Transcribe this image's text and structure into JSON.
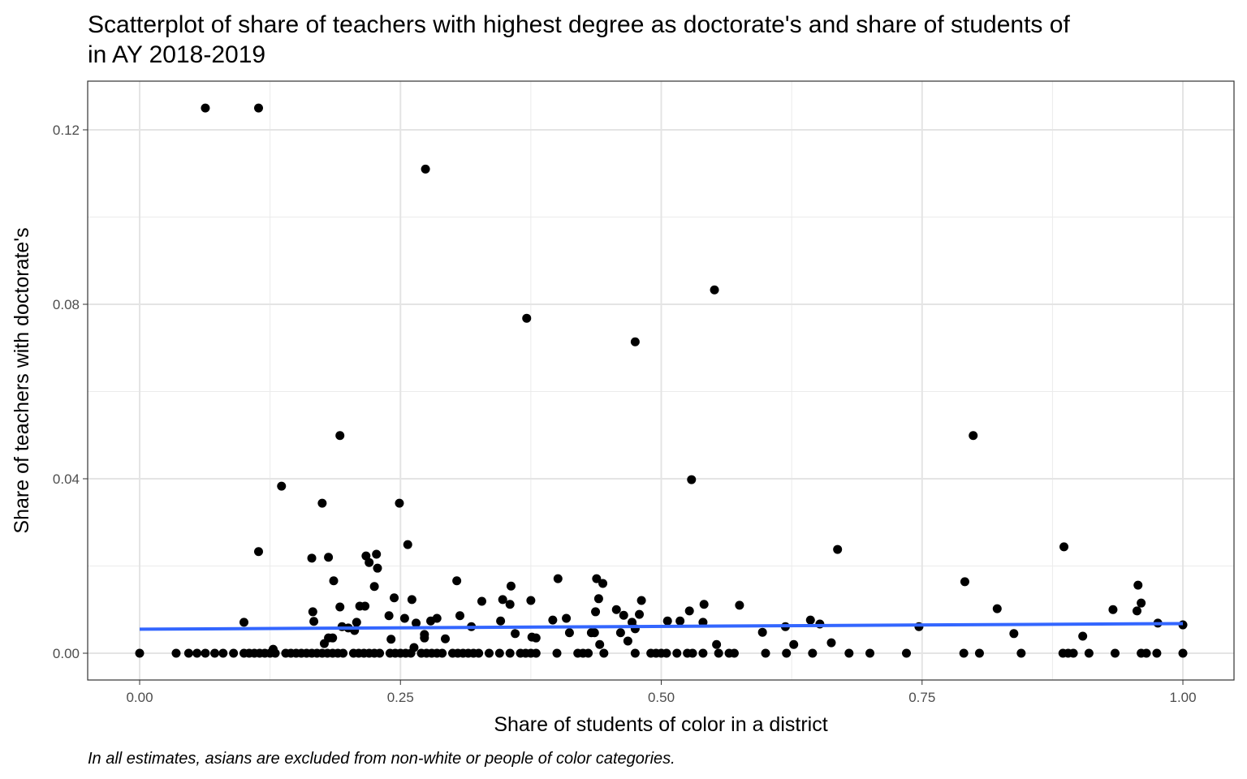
{
  "chart_data": {
    "type": "scatter",
    "title": [
      "Scatterplot of share of teachers with highest degree as doctorate's and share of students of",
      "in AY 2018-2019"
    ],
    "x_label": "Share of students of color in a district",
    "y_label": "Share of teachers with doctorate's",
    "caption": "In all estimates, asians are excluded from non-white or people of color categories.",
    "color": "#000000",
    "grid": true,
    "xlim": [
      -0.0498,
      1.049
    ],
    "ylim": [
      -0.00614,
      0.13116
    ],
    "xticks": [
      {
        "value": 0,
        "label": "0.00"
      },
      {
        "value": 0.25,
        "label": "0.25"
      },
      {
        "value": 0.5,
        "label": "0.50"
      },
      {
        "value": 0.75,
        "label": "0.75"
      },
      {
        "value": 1,
        "label": "1.00"
      }
    ],
    "yticks": [
      {
        "value": 0,
        "label": "0.00"
      },
      {
        "value": 0.04,
        "label": "0.04"
      },
      {
        "value": 0.08,
        "label": "0.08"
      },
      {
        "value": 0.12,
        "label": "0.12"
      }
    ],
    "x_minor_ticks": [
      0.125,
      0.375,
      0.625,
      0.875
    ],
    "y_minor_ticks": [
      0.02,
      0.06,
      0.1
    ],
    "trend": {
      "x": [
        0,
        1
      ],
      "y": [
        0.0055,
        0.0068
      ],
      "color": "#3366ff"
    },
    "x": [
      0.063,
      0.114,
      0.274,
      0.371,
      0.551,
      0.475,
      0.192,
      0.799,
      0.529,
      0.136,
      0.175,
      0.249,
      0.257,
      0.114,
      0.669,
      0.886,
      0.165,
      0.181,
      0.217,
      0.227,
      0.22,
      0.228,
      0.186,
      0.225,
      0.304,
      0.356,
      0.401,
      0.438,
      0.444,
      0.791,
      0.957,
      0.244,
      0.261,
      0.328,
      0.348,
      0.355,
      0.375,
      0.44,
      0.481,
      0.541,
      0.575,
      0.822,
      0.933,
      0.96,
      0.956,
      0.192,
      0.211,
      0.216,
      0.166,
      0.437,
      0.457,
      0.464,
      0.479,
      0.527,
      0.1,
      0.167,
      0.194,
      0.2,
      0.208,
      0.239,
      0.254,
      0.265,
      0.279,
      0.285,
      0.307,
      0.318,
      0.346,
      0.396,
      0.409,
      0.472,
      0.475,
      0.506,
      0.518,
      0.54,
      0.619,
      0.643,
      0.652,
      0.747,
      0.976,
      1.0,
      0.206,
      0.412,
      0.433,
      0.436,
      0.461,
      0.36,
      0.597,
      0.838,
      0.904,
      0.181,
      0.185,
      0.241,
      0.293,
      0.376,
      0.38,
      0.273,
      0.273,
      0.468,
      0.663,
      0.177,
      0.441,
      0.553,
      0.627,
      0.128,
      0.263,
      0.0,
      0.035,
      0.047,
      0.055,
      0.063,
      0.072,
      0.08,
      0.09,
      0.1,
      0.105,
      0.11,
      0.115,
      0.12,
      0.125,
      0.13,
      0.14,
      0.145,
      0.15,
      0.155,
      0.16,
      0.165,
      0.17,
      0.175,
      0.18,
      0.185,
      0.19,
      0.195,
      0.205,
      0.21,
      0.215,
      0.22,
      0.225,
      0.23,
      0.24,
      0.245,
      0.25,
      0.255,
      0.26,
      0.27,
      0.275,
      0.28,
      0.285,
      0.29,
      0.3,
      0.305,
      0.31,
      0.315,
      0.32,
      0.325,
      0.335,
      0.345,
      0.355,
      0.365,
      0.37,
      0.375,
      0.38,
      0.4,
      0.42,
      0.425,
      0.43,
      0.445,
      0.475,
      0.49,
      0.495,
      0.5,
      0.505,
      0.515,
      0.525,
      0.53,
      0.54,
      0.555,
      0.565,
      0.57,
      0.6,
      0.62,
      0.645,
      0.68,
      0.7,
      0.735,
      0.79,
      0.805,
      0.845,
      0.885,
      0.89,
      0.895,
      0.91,
      0.935,
      0.96,
      0.965,
      0.975,
      1.0
    ],
    "values": [
      0.125,
      0.125,
      0.111,
      0.0768,
      0.0833,
      0.0714,
      0.0499,
      0.0499,
      0.0398,
      0.0383,
      0.0344,
      0.0344,
      0.0249,
      0.0233,
      0.0238,
      0.0244,
      0.0218,
      0.022,
      0.0223,
      0.0227,
      0.0208,
      0.0195,
      0.0166,
      0.0153,
      0.0166,
      0.0154,
      0.0171,
      0.0171,
      0.016,
      0.0164,
      0.0156,
      0.0127,
      0.0123,
      0.0119,
      0.0123,
      0.0112,
      0.0121,
      0.0125,
      0.0121,
      0.0112,
      0.011,
      0.0102,
      0.01,
      0.0115,
      0.0097,
      0.0106,
      0.0108,
      0.0108,
      0.0095,
      0.0095,
      0.01,
      0.0087,
      0.0089,
      0.0097,
      0.0071,
      0.0073,
      0.0061,
      0.0058,
      0.0071,
      0.0086,
      0.008,
      0.0069,
      0.0074,
      0.008,
      0.0086,
      0.0061,
      0.0074,
      0.0076,
      0.008,
      0.0071,
      0.0056,
      0.0074,
      0.0074,
      0.0071,
      0.0061,
      0.0076,
      0.0067,
      0.0061,
      0.0069,
      0.0065,
      0.0052,
      0.0047,
      0.0047,
      0.0047,
      0.0047,
      0.0045,
      0.0048,
      0.0045,
      0.0039,
      0.0035,
      0.0035,
      0.0032,
      0.0033,
      0.0037,
      0.0035,
      0.0035,
      0.0043,
      0.0028,
      0.0024,
      0.0022,
      0.002,
      0.002,
      0.002,
      0.0009,
      0.0013,
      0,
      0,
      0,
      0,
      0,
      0,
      0,
      0,
      0,
      0,
      0,
      0,
      0,
      0,
      0,
      0,
      0,
      0,
      0,
      0,
      0,
      0,
      0,
      0,
      0,
      0,
      0,
      0,
      0,
      0,
      0,
      0,
      0,
      0,
      0,
      0,
      0,
      0,
      0,
      0,
      0,
      0,
      0,
      0,
      0,
      0,
      0,
      0,
      0,
      0,
      0,
      0,
      0,
      0,
      0,
      0,
      0,
      0,
      0,
      0,
      0,
      0,
      0,
      0,
      0,
      0,
      0,
      0,
      0,
      0,
      0,
      0,
      0,
      0,
      0,
      0,
      0,
      0,
      0,
      0,
      0,
      0,
      0,
      0,
      0,
      0,
      0,
      0,
      0,
      0,
      0
    ]
  }
}
